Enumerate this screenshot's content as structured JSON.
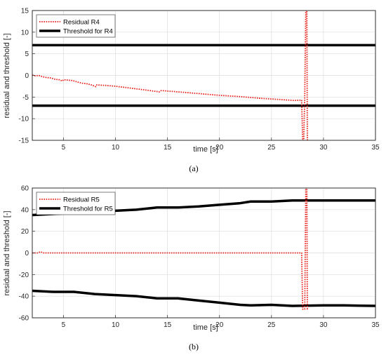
{
  "chart_data": [
    {
      "id": "a",
      "type": "line",
      "caption": "(a)",
      "xlabel": "time [s]",
      "ylabel": "residual and threshold [-]",
      "xlim": [
        2,
        35
      ],
      "ylim": [
        -15,
        15
      ],
      "xticks": [
        5,
        10,
        15,
        20,
        25,
        30,
        35
      ],
      "yticks": [
        -15,
        -10,
        -5,
        0,
        5,
        10,
        15
      ],
      "grid": true,
      "legend_position": "top-left",
      "series": [
        {
          "name": "Residual R4",
          "style": "dotted",
          "color": "#e8201a",
          "points": [
            [
              2.0,
              0.1
            ],
            [
              2.3,
              -0.1
            ],
            [
              2.6,
              0.0
            ],
            [
              3.0,
              -0.3
            ],
            [
              3.4,
              -0.5
            ],
            [
              3.8,
              -0.6
            ],
            [
              4.2,
              -0.9
            ],
            [
              4.6,
              -1.0
            ],
            [
              4.9,
              -1.3
            ],
            [
              5.0,
              -1.0
            ],
            [
              5.5,
              -1.1
            ],
            [
              5.9,
              -1.2
            ],
            [
              6.3,
              -1.5
            ],
            [
              6.8,
              -1.8
            ],
            [
              7.2,
              -1.9
            ],
            [
              7.7,
              -2.2
            ],
            [
              8.1,
              -2.6
            ],
            [
              8.2,
              -2.2
            ],
            [
              9.0,
              -2.3
            ],
            [
              10.0,
              -2.5
            ],
            [
              11.0,
              -2.8
            ],
            [
              12.0,
              -3.1
            ],
            [
              13.0,
              -3.4
            ],
            [
              14.2,
              -3.8
            ],
            [
              14.4,
              -3.5
            ],
            [
              16.0,
              -3.8
            ],
            [
              18.0,
              -4.2
            ],
            [
              20.0,
              -4.6
            ],
            [
              22.0,
              -4.9
            ],
            [
              24.0,
              -5.3
            ],
            [
              26.0,
              -5.6
            ],
            [
              27.2,
              -5.8
            ],
            [
              27.9,
              -5.7
            ],
            [
              28.0,
              -15.0
            ],
            [
              28.1,
              -15.0
            ],
            [
              28.2,
              -5.0
            ],
            [
              28.3,
              15.0
            ],
            [
              28.4,
              15.0
            ],
            [
              28.45,
              -15.0
            ],
            [
              28.5,
              -15.0
            ]
          ]
        },
        {
          "name": "Threshold for R4",
          "style": "solid",
          "color": "#000000",
          "points": [
            [
              2,
              7
            ],
            [
              35,
              7
            ]
          ],
          "points_lower": [
            [
              2,
              -7
            ],
            [
              35,
              -7
            ]
          ]
        }
      ]
    },
    {
      "id": "b",
      "type": "line",
      "caption": "(b)",
      "xlabel": "time [s]",
      "ylabel": "residual and threshold [-]",
      "xlim": [
        2,
        35
      ],
      "ylim": [
        -60,
        60
      ],
      "xticks": [
        5,
        10,
        15,
        20,
        25,
        30,
        35
      ],
      "yticks": [
        -60,
        -40,
        -20,
        0,
        20,
        40,
        60
      ],
      "grid": true,
      "legend_position": "top-left",
      "series": [
        {
          "name": "Residual R5",
          "style": "dotted",
          "color": "#e8201a",
          "points": [
            [
              2.0,
              0
            ],
            [
              2.5,
              0
            ],
            [
              2.8,
              1
            ],
            [
              3.1,
              0
            ],
            [
              10.0,
              0
            ],
            [
              20.0,
              0
            ],
            [
              27.9,
              0
            ],
            [
              28.0,
              -52
            ],
            [
              28.2,
              -52
            ],
            [
              28.3,
              60
            ],
            [
              28.4,
              60
            ],
            [
              28.45,
              -52
            ],
            [
              28.5,
              -52
            ]
          ]
        },
        {
          "name": "Threshold for R5",
          "style": "solid",
          "color": "#000000",
          "points": [
            [
              2,
              35
            ],
            [
              4,
              36
            ],
            [
              6,
              37
            ],
            [
              8,
              38
            ],
            [
              10,
              39
            ],
            [
              12,
              40
            ],
            [
              14,
              42
            ],
            [
              16,
              42
            ],
            [
              18,
              43
            ],
            [
              20,
              44.5
            ],
            [
              22,
              46
            ],
            [
              23,
              47.5
            ],
            [
              25,
              47.5
            ],
            [
              27,
              48.5
            ],
            [
              30,
              48.5
            ],
            [
              32,
              48.5
            ],
            [
              35,
              48.5
            ]
          ],
          "points_lower": [
            [
              2,
              -35
            ],
            [
              4,
              -36
            ],
            [
              6,
              -36
            ],
            [
              8,
              -38
            ],
            [
              10,
              -39
            ],
            [
              12,
              -40
            ],
            [
              14,
              -42
            ],
            [
              16,
              -42
            ],
            [
              18,
              -44
            ],
            [
              20,
              -46
            ],
            [
              22,
              -48
            ],
            [
              23,
              -48.5
            ],
            [
              25,
              -48
            ],
            [
              27,
              -49
            ],
            [
              30,
              -48.5
            ],
            [
              32,
              -48.5
            ],
            [
              35,
              -49
            ]
          ]
        }
      ]
    }
  ]
}
